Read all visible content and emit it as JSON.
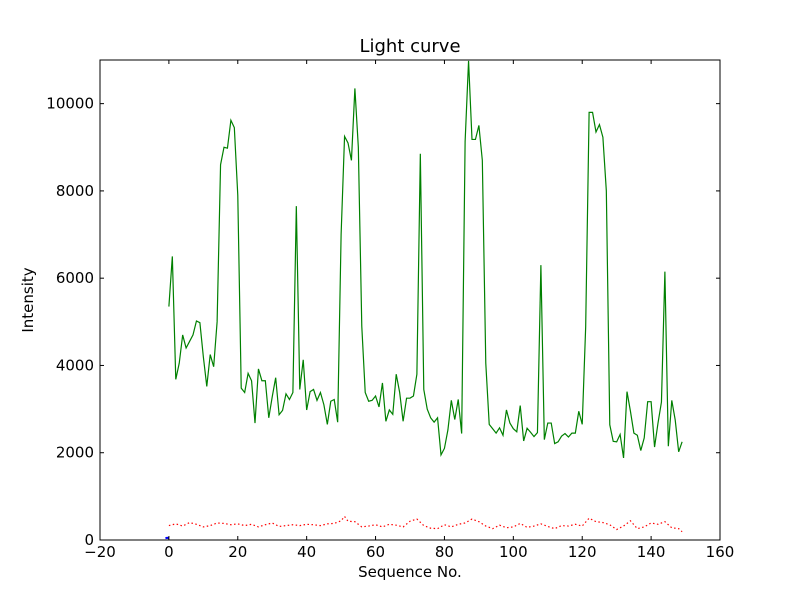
{
  "chart_data": {
    "type": "line",
    "title": "Light curve",
    "xlabel": "Sequence No.",
    "ylabel": "Intensity",
    "xlim": [
      -20,
      160
    ],
    "ylim": [
      0,
      11000
    ],
    "xticks": [
      -20,
      0,
      20,
      40,
      60,
      80,
      100,
      120,
      140,
      160
    ],
    "yticks": [
      0,
      2000,
      4000,
      6000,
      8000,
      10000
    ],
    "grid": false,
    "legend": "none",
    "series": [
      {
        "color": "#008000",
        "style": "solid",
        "x": [
          0,
          1,
          2,
          3,
          4,
          5,
          6,
          7,
          8,
          9,
          10,
          11,
          12,
          13,
          14,
          15,
          16,
          17,
          18,
          19,
          20,
          21,
          22,
          23,
          24,
          25,
          26,
          27,
          28,
          29,
          30,
          31,
          32,
          33,
          34,
          35,
          36,
          37,
          38,
          39,
          40,
          41,
          42,
          43,
          44,
          45,
          46,
          47,
          48,
          49,
          50,
          51,
          52,
          53,
          54,
          55,
          56,
          57,
          58,
          59,
          60,
          61,
          62,
          63,
          64,
          65,
          66,
          67,
          68,
          69,
          70,
          71,
          72,
          73,
          74,
          75,
          76,
          77,
          78,
          79,
          80,
          81,
          82,
          83,
          84,
          85,
          86,
          87,
          88,
          89,
          90,
          91,
          92,
          93,
          94,
          95,
          96,
          97,
          98,
          99,
          100,
          101,
          102,
          103,
          104,
          105,
          106,
          107,
          108,
          109,
          110,
          111,
          112,
          113,
          114,
          115,
          116,
          117,
          118,
          119,
          120,
          121,
          122,
          123,
          124,
          125,
          126,
          127,
          128,
          129,
          130,
          131,
          132,
          133,
          134,
          135,
          136,
          137,
          138,
          139,
          140,
          141,
          142,
          143,
          144,
          145,
          146,
          147,
          148,
          149
        ],
        "y": [
          5350,
          6500,
          3680,
          4050,
          4700,
          4400,
          4550,
          4700,
          5020,
          4980,
          4200,
          3520,
          4250,
          3970,
          5000,
          8600,
          9000,
          8980,
          9620,
          9450,
          7900,
          3480,
          3380,
          3820,
          3650,
          2680,
          3920,
          3650,
          3650,
          2800,
          3280,
          3720,
          2870,
          2970,
          3350,
          3220,
          3380,
          7650,
          3450,
          4130,
          2980,
          3400,
          3450,
          3200,
          3380,
          3100,
          2650,
          3180,
          3220,
          2700,
          7000,
          9250,
          9100,
          8700,
          10350,
          9000,
          4900,
          3380,
          3180,
          3200,
          3300,
          3050,
          3600,
          2720,
          2980,
          2880,
          3800,
          3380,
          2720,
          3250,
          3250,
          3300,
          3800,
          8850,
          3450,
          3000,
          2800,
          2700,
          2800,
          1950,
          2100,
          2520,
          3200,
          2760,
          3220,
          2440,
          9130,
          10980,
          9180,
          9180,
          9500,
          8700,
          4050,
          2650,
          2550,
          2450,
          2570,
          2400,
          2980,
          2680,
          2550,
          2480,
          3080,
          2270,
          2560,
          2470,
          2370,
          2460,
          6300,
          2300,
          2680,
          2680,
          2210,
          2250,
          2380,
          2440,
          2360,
          2450,
          2450,
          2950,
          2650,
          4880,
          9800,
          9800,
          9350,
          9520,
          9230,
          8000,
          2640,
          2260,
          2250,
          2420,
          1880,
          3400,
          2950,
          2450,
          2400,
          2050,
          2340,
          3170,
          3170,
          2130,
          2680,
          3160,
          6150,
          2150,
          3200,
          2750,
          2020,
          2250
        ]
      },
      {
        "color": "#ff0000",
        "style": "dotted",
        "x": [
          0,
          2,
          4,
          6,
          8,
          10,
          12,
          14,
          16,
          18,
          20,
          22,
          24,
          26,
          28,
          30,
          32,
          34,
          36,
          38,
          40,
          42,
          44,
          46,
          48,
          50,
          51,
          52,
          54,
          56,
          58,
          60,
          62,
          64,
          66,
          68,
          70,
          72,
          74,
          76,
          78,
          80,
          82,
          84,
          86,
          88,
          90,
          92,
          94,
          96,
          98,
          100,
          102,
          104,
          106,
          108,
          110,
          112,
          114,
          116,
          118,
          120,
          122,
          124,
          126,
          128,
          130,
          132,
          134,
          136,
          138,
          140,
          142,
          144,
          146,
          148,
          149
        ],
        "y": [
          330,
          370,
          320,
          400,
          360,
          300,
          330,
          390,
          380,
          350,
          370,
          330,
          360,
          300,
          350,
          390,
          310,
          330,
          350,
          330,
          360,
          350,
          330,
          370,
          380,
          440,
          540,
          430,
          420,
          300,
          320,
          350,
          300,
          360,
          340,
          300,
          430,
          480,
          330,
          270,
          260,
          350,
          300,
          360,
          390,
          480,
          420,
          320,
          260,
          340,
          280,
          300,
          380,
          290,
          320,
          370,
          310,
          260,
          330,
          320,
          360,
          320,
          500,
          420,
          400,
          350,
          240,
          320,
          440,
          260,
          300,
          390,
          360,
          420,
          280,
          260,
          190
        ]
      },
      {
        "color": "#0000ff",
        "style": "solid",
        "x": [
          -1,
          -0.5,
          0
        ],
        "y": [
          40,
          50,
          40
        ]
      }
    ]
  }
}
